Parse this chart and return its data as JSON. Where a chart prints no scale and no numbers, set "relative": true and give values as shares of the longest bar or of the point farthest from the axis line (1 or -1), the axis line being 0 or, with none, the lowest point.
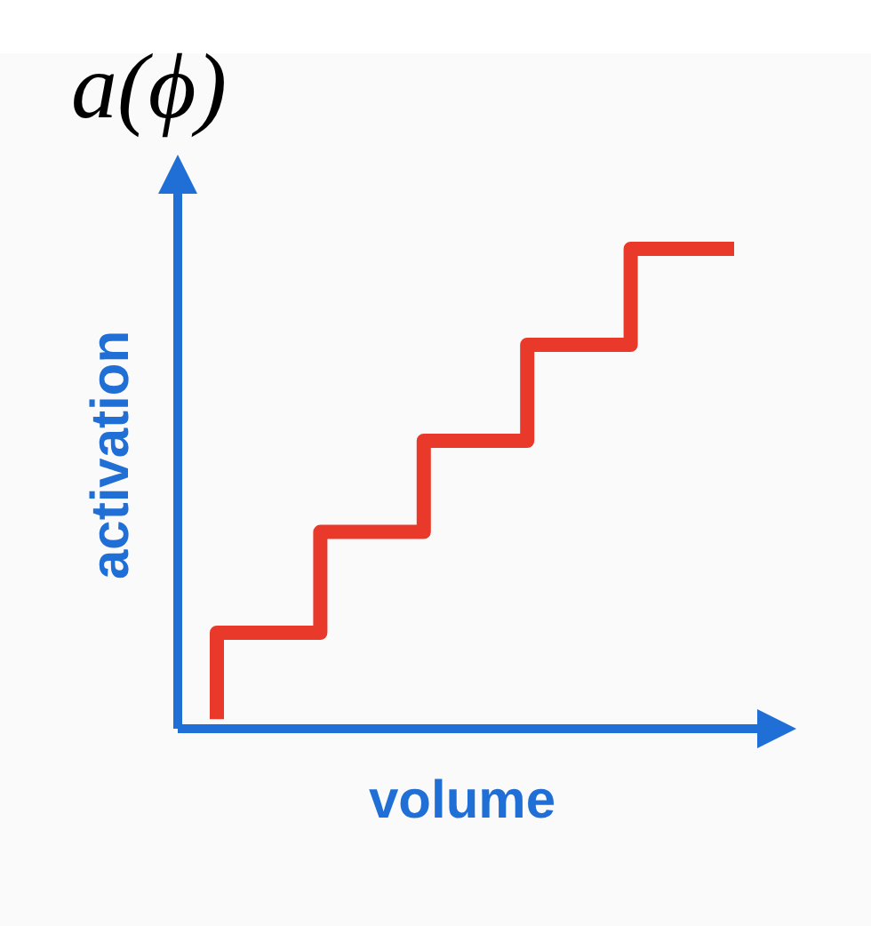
{
  "chart_data": {
    "type": "step",
    "title": "a(ϕ)",
    "xlabel": "volume",
    "ylabel": "activation",
    "relative": true,
    "categories": [
      null,
      null,
      null,
      null,
      null,
      null
    ],
    "values": [
      0.02,
      0.2,
      0.41,
      0.6,
      0.8,
      1.0
    ],
    "color": "#e8392a"
  }
}
